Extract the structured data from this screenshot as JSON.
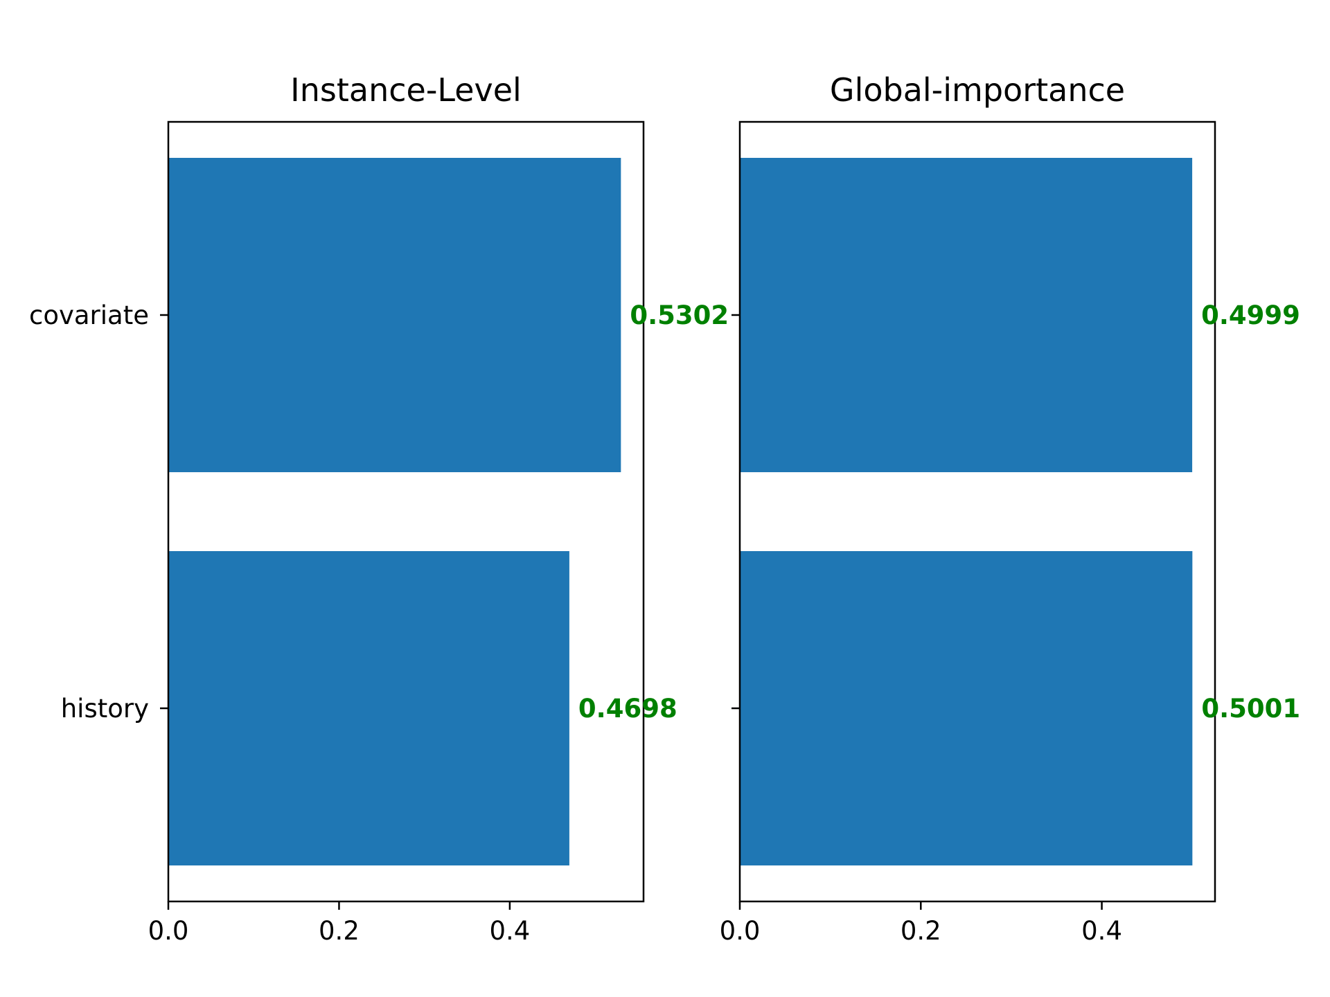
{
  "colors": {
    "bar": "#1f77b4",
    "value_label": "#008000",
    "axis": "#000000"
  },
  "chart_data": [
    {
      "type": "bar",
      "orientation": "horizontal",
      "title": "Instance-Level",
      "categories": [
        "covariate",
        "history"
      ],
      "values": [
        0.5302,
        0.4698
      ],
      "value_labels": [
        "0.5302",
        "0.4698"
      ],
      "xlabel": "",
      "ylabel": "",
      "xlim": [
        0,
        0.5567
      ],
      "xticks": [
        0.0,
        0.2,
        0.4
      ],
      "xtick_labels": [
        "0.0",
        "0.2",
        "0.4"
      ],
      "show_category_labels": true,
      "grid": false
    },
    {
      "type": "bar",
      "orientation": "horizontal",
      "title": "Global-importance",
      "categories": [
        "covariate",
        "history"
      ],
      "values": [
        0.4999,
        0.5001
      ],
      "value_labels": [
        "0.4999",
        "0.5001"
      ],
      "xlabel": "",
      "ylabel": "",
      "xlim": [
        0,
        0.5251
      ],
      "xticks": [
        0.0,
        0.2,
        0.4
      ],
      "xtick_labels": [
        "0.0",
        "0.2",
        "0.4"
      ],
      "show_category_labels": false,
      "grid": false
    }
  ]
}
